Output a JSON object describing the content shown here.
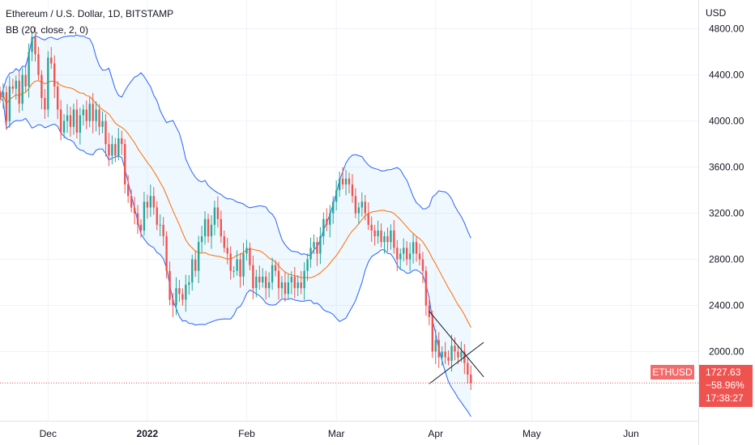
{
  "header": {
    "title": "Ethereum / U.S. Dollar, 1D, BITSTAMP",
    "indicator": "BB (20, close, 2, 0)",
    "currency": "USD"
  },
  "price_tag": {
    "symbol": "ETHUSD",
    "price": "1727.63",
    "change": "−58.96%",
    "countdown": "17:38:27"
  },
  "colors": {
    "up": "#26a69a",
    "down": "#ef5350",
    "basis": "#ff6d00",
    "band": "#2962ff",
    "fill": "#2196f3",
    "tag": "#ef5350",
    "symbol_tag": "#f56b6b"
  },
  "chart_data": {
    "type": "candlestick",
    "title": "Ethereum / U.S. Dollar, 1D, BITSTAMP",
    "indicator": "BB (20, close, 2, 0)",
    "y_unit": "USD",
    "ylim": [
      1400,
      5050
    ],
    "y_ticks": [
      2000,
      2400,
      2800,
      3200,
      3600,
      4000,
      4400,
      4800
    ],
    "y_tick_labels": [
      "2000.00",
      "2400.00",
      "2800.00",
      "3200.00",
      "3600.00",
      "4000.00",
      "4400.00",
      "4800.00"
    ],
    "x_range": [
      "2021-11-16",
      "2022-06-22"
    ],
    "x_ticks": [
      {
        "date": "2021-12-01",
        "label": "Dec",
        "bold": false
      },
      {
        "date": "2022-01-01",
        "label": "2022",
        "bold": true
      },
      {
        "date": "2022-02-01",
        "label": "Feb",
        "bold": false
      },
      {
        "date": "2022-03-01",
        "label": "Mar",
        "bold": false
      },
      {
        "date": "2022-04-01",
        "label": "Apr",
        "bold": false
      },
      {
        "date": "2022-05-01",
        "label": "May",
        "bold": false
      },
      {
        "date": "2022-06-01",
        "label": "Jun",
        "bold": false
      }
    ],
    "start_date": "2021-11-16",
    "closes": [
      4200,
      4250,
      4000,
      4300,
      4280,
      4350,
      4150,
      4400,
      4300,
      4600,
      4730,
      4580,
      4400,
      4200,
      4100,
      4550,
      4500,
      4300,
      4100,
      3900,
      4000,
      4050,
      3950,
      4100,
      3900,
      4050,
      4100,
      4000,
      4150,
      4000,
      4100,
      3950,
      4000,
      3800,
      3700,
      3800,
      3700,
      3850,
      3800,
      3450,
      3350,
      3250,
      3200,
      3100,
      3050,
      3300,
      3250,
      3350,
      3250,
      3100,
      3100,
      3000,
      2700,
      2450,
      2400,
      2550,
      2500,
      2450,
      2580,
      2600,
      2800,
      2700,
      2950,
      3000,
      3150,
      3000,
      3100,
      3250,
      3150,
      3000,
      2900,
      2850,
      2700,
      2700,
      2800,
      2650,
      2850,
      2900,
      2750,
      2550,
      2650,
      2600,
      2650,
      2550,
      2600,
      2750,
      2700,
      2550,
      2600,
      2500,
      2600,
      2650,
      2550,
      2600,
      2550,
      2700,
      2800,
      2900,
      2950,
      2850,
      3000,
      3150,
      3100,
      3200,
      3300,
      3400,
      3500,
      3450,
      3500,
      3450,
      3350,
      3200,
      3250,
      3300,
      3200,
      3100,
      3050,
      3000,
      3050,
      2950,
      3000,
      2950,
      3050,
      2900,
      2800,
      2850,
      2900,
      2800,
      2850,
      2950,
      2850,
      2800,
      2700,
      2400,
      2300,
      2000,
      2100,
      1950,
      2000,
      1950,
      1920,
      2050,
      2000,
      1950,
      2000,
      1900,
      1800,
      1727.63
    ],
    "bb_basis_start_index": 20,
    "series_names": [
      "ETHUSD",
      "BB basis",
      "BB upper",
      "BB lower"
    ]
  }
}
